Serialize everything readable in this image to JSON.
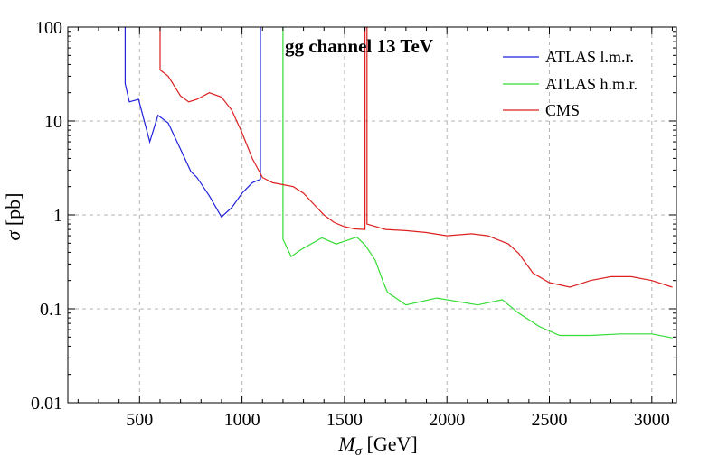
{
  "chart_data": {
    "type": "line",
    "title": "gg channel 13 TeV",
    "xlabel": {
      "symbol": "M",
      "sub": "σ",
      "unit": " [GeV]"
    },
    "ylabel": {
      "symbol": "σ",
      "unit": " [pb]"
    },
    "xlim": [
      150,
      3120
    ],
    "ylim": [
      0.01,
      100
    ],
    "yscale": "log",
    "grid": true,
    "legend_position": "top-right",
    "x_ticks": [
      500,
      1000,
      1500,
      2000,
      2500,
      3000
    ],
    "x_tick_labels": [
      "500",
      "1000",
      "1500",
      "2000",
      "2500",
      "3000"
    ],
    "y_ticks": [
      0.01,
      0.1,
      1,
      10,
      100
    ],
    "y_tick_labels": [
      "0.01",
      "0.1",
      "1",
      "10",
      "100"
    ],
    "series": [
      {
        "name": "ATLAS l.m.r.",
        "color": "#2020dd",
        "x": [
          430,
          430,
          450,
          495,
          550,
          590,
          640,
          700,
          750,
          780,
          840,
          900,
          950,
          1000,
          1050,
          1090,
          1090
        ],
        "y": [
          100,
          25,
          16,
          17,
          6,
          11.5,
          9.5,
          5,
          2.9,
          2.5,
          1.6,
          0.95,
          1.2,
          1.7,
          2.2,
          2.4,
          100
        ]
      },
      {
        "name": "ATLAS h.m.r.",
        "color": "#33dd33",
        "x": [
          1200,
          1200,
          1240,
          1290,
          1390,
          1460,
          1560,
          1600,
          1650,
          1690,
          1710,
          1800,
          1950,
          2050,
          2150,
          2270,
          2350,
          2450,
          2550,
          2700,
          2850,
          3000,
          3100
        ],
        "y": [
          100,
          0.55,
          0.36,
          0.43,
          0.57,
          0.49,
          0.58,
          0.48,
          0.33,
          0.19,
          0.15,
          0.11,
          0.13,
          0.12,
          0.11,
          0.125,
          0.09,
          0.065,
          0.052,
          0.052,
          0.054,
          0.054,
          0.049
        ]
      },
      {
        "name": "CMS",
        "color": "#dd2020",
        "x": [
          600,
          600,
          640,
          700,
          740,
          780,
          840,
          900,
          950,
          1000,
          1050,
          1100,
          1150,
          1200,
          1250,
          1300,
          1350,
          1400,
          1450,
          1500,
          1550,
          1600,
          1600,
          1610,
          1610,
          1700,
          1800,
          1900,
          2000,
          2120,
          2200,
          2300,
          2350,
          2420,
          2500,
          2600,
          2700,
          2800,
          2900,
          3000,
          3100
        ],
        "y": [
          100,
          35,
          30,
          18.5,
          16,
          17,
          20,
          18,
          13,
          7.5,
          4,
          2.5,
          2.2,
          2.1,
          2.0,
          1.7,
          1.3,
          1.0,
          0.83,
          0.75,
          0.71,
          0.7,
          100,
          100,
          0.8,
          0.7,
          0.68,
          0.65,
          0.6,
          0.63,
          0.6,
          0.49,
          0.39,
          0.24,
          0.19,
          0.17,
          0.2,
          0.22,
          0.22,
          0.2,
          0.17
        ]
      }
    ]
  }
}
